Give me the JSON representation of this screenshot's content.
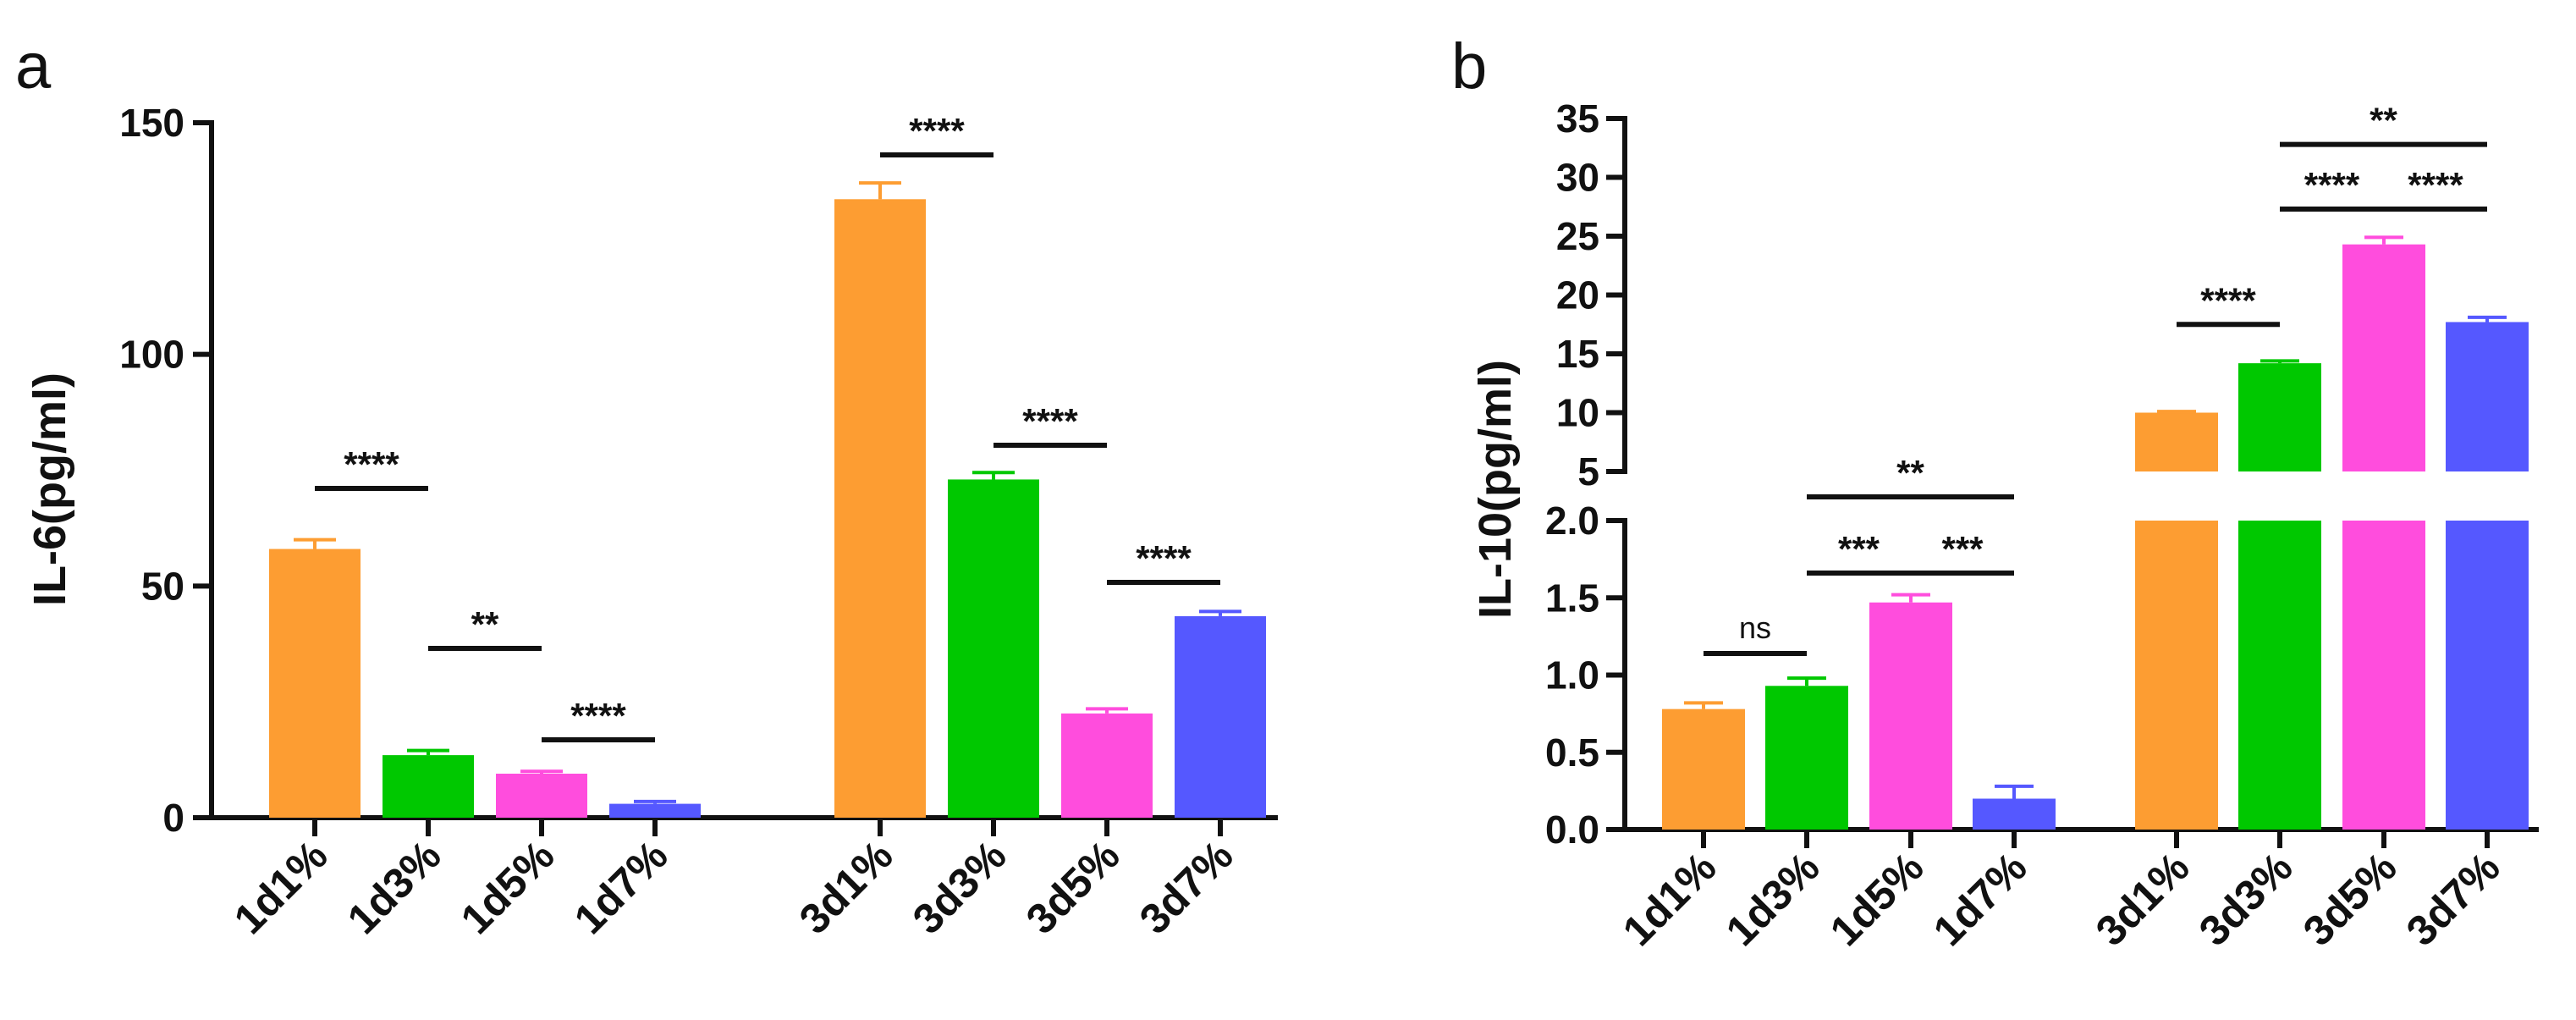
{
  "chart_data": [
    {
      "panel": "a",
      "type": "bar",
      "title": "",
      "xlabel": "",
      "ylabel": "IL-6(pg/ml)",
      "ylim": [
        0,
        150
      ],
      "yticks": [
        "0",
        "50",
        "100",
        "150"
      ],
      "categories": [
        "1d1%",
        "1d3%",
        "1d5%",
        "1d7%",
        "3d1%",
        "3d3%",
        "3d5%",
        "3d7%"
      ],
      "values": [
        58,
        13.5,
        9.5,
        3,
        133.5,
        73,
        22.5,
        43.5
      ],
      "errors": [
        2,
        1,
        0.5,
        0.5,
        3.5,
        1.5,
        1,
        1
      ],
      "colors": [
        "#fd9d32",
        "#00c800",
        "#ff4ddd",
        "#5558ff",
        "#fd9d32",
        "#00c800",
        "#ff4ddd",
        "#5558ff"
      ],
      "significance": [
        {
          "from": "1d1%",
          "to": "1d3%",
          "label": "****"
        },
        {
          "from": "1d3%",
          "to": "1d5%",
          "label": "**"
        },
        {
          "from": "1d5%",
          "to": "1d7%",
          "label": "****"
        },
        {
          "from": "3d1%",
          "to": "3d3%",
          "label": "****"
        },
        {
          "from": "3d3%",
          "to": "3d5%",
          "label": "****"
        },
        {
          "from": "3d5%",
          "to": "3d7%",
          "label": "****"
        }
      ]
    },
    {
      "panel": "b",
      "type": "bar",
      "title": "",
      "xlabel": "",
      "ylabel": "IL-10(pg/ml)",
      "broken_axis": true,
      "ylim_lower": [
        0,
        2.0
      ],
      "ylim_upper": [
        5,
        35
      ],
      "yticks_lower": [
        "0.0",
        "0.5",
        "1.0",
        "1.5",
        "2.0"
      ],
      "yticks_upper": [
        "5",
        "10",
        "15",
        "20",
        "25",
        "30",
        "35"
      ],
      "categories": [
        "1d1%",
        "1d3%",
        "1d5%",
        "1d7%",
        "3d1%",
        "3d3%",
        "3d5%",
        "3d7%"
      ],
      "values": [
        0.78,
        0.93,
        1.47,
        0.2,
        10,
        14.2,
        24.3,
        17.7
      ],
      "errors": [
        0.04,
        0.05,
        0.05,
        0.08,
        0.1,
        0.2,
        0.6,
        0.4
      ],
      "colors": [
        "#fd9d32",
        "#00c800",
        "#ff4ddd",
        "#5558ff",
        "#fd9d32",
        "#00c800",
        "#ff4ddd",
        "#5558ff"
      ],
      "significance": [
        {
          "from": "1d1%",
          "to": "1d3%",
          "label": "ns",
          "y": 1.14
        },
        {
          "from": "1d3%",
          "to": "1d5%",
          "label": "***",
          "y": 1.66
        },
        {
          "from": "1d5%",
          "to": "1d7%",
          "label": "***",
          "y": 1.66
        },
        {
          "from": "1d3%",
          "to": "1d7%",
          "label": "**",
          "y": 2.23
        },
        {
          "from": "3d1%",
          "to": "3d3%",
          "label": "****",
          "y": 17.5
        },
        {
          "from": "3d3%",
          "to": "3d5%",
          "label": "****",
          "y": 27.3
        },
        {
          "from": "3d5%",
          "to": "3d7%",
          "label": "****",
          "y": 27.3
        },
        {
          "from": "3d3%",
          "to": "3d7%",
          "label": "**",
          "y": 32.8
        }
      ]
    }
  ]
}
